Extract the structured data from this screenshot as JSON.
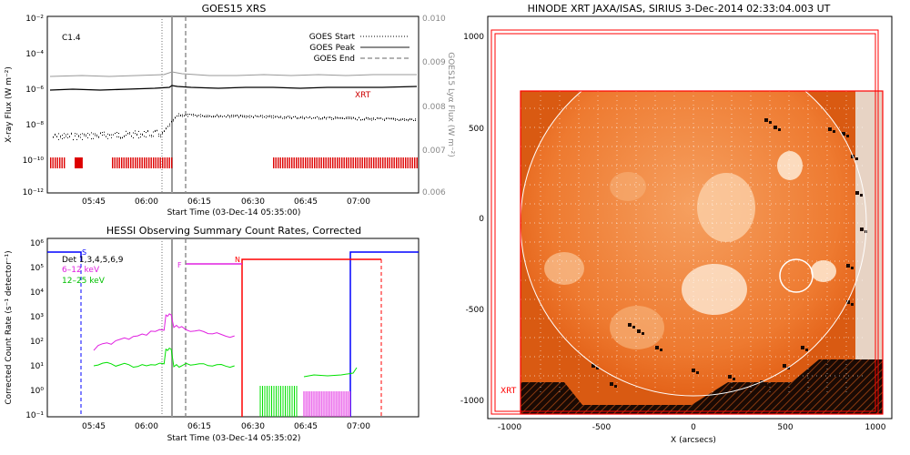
{
  "goes": {
    "title": "GOES15 XRS",
    "ylabel_left": "X-ray Flux (W m⁻²)",
    "ylabel_right": "GOES15 Lyα Flux (W m⁻²)",
    "xlabel": "Start Time (03-Dec-14 05:35:00)",
    "class_label": "C1.4",
    "left_ticks": [
      "10⁻²",
      "10⁻⁴",
      "10⁻⁶",
      "10⁻⁸",
      "10⁻¹⁰",
      "10⁻¹²"
    ],
    "right_ticks": [
      "0.010",
      "0.009",
      "0.008",
      "0.007",
      "0.006"
    ],
    "x_ticks": [
      "05:45",
      "06:00",
      "06:15",
      "06:30",
      "06:45",
      "07:00"
    ],
    "legend": [
      {
        "label": "GOES Start",
        "style": "dotted"
      },
      {
        "label": "GOES Peak",
        "style": "solid"
      },
      {
        "label": "GOES End",
        "style": "dashed"
      }
    ],
    "xrt_label": "XRT",
    "colors": {
      "long": "#000000",
      "lya": "#999999",
      "xrt": "#dd0000"
    }
  },
  "hessi": {
    "title": "HESSI Observing Summary Count Rates, Corrected",
    "ylabel": "Corrected Count Rate (s⁻¹ detector⁻¹)",
    "xlabel": "Start Time (03-Dec-14 05:35:02)",
    "y_ticks": [
      "10⁶",
      "10⁵",
      "10⁴",
      "10³",
      "10²",
      "10¹",
      "10⁰",
      "10⁻¹"
    ],
    "x_ticks": [
      "05:45",
      "06:00",
      "06:15",
      "06:30",
      "06:45",
      "07:00"
    ],
    "legend": [
      {
        "label": "Det 1,3,4,5,6,9",
        "color": "#000000"
      },
      {
        "label": "6–12 keV",
        "color": "#e020e0"
      },
      {
        "label": "12–25 keV",
        "color": "#00e000"
      }
    ],
    "markers": {
      "s": "S",
      "f": "F",
      "n": "N"
    },
    "colors": {
      "low": "#e020e0",
      "high": "#00e000",
      "night": "#ff0000",
      "saa": "#0000ff"
    }
  },
  "xrt": {
    "title": "HINODE XRT JAXA/ISAS, SIRIUS   3-Dec-2014 02:33:04.003 UT",
    "xlabel": "X (arcsecs)",
    "x_ticks": [
      "-1000",
      "-500",
      "0",
      "500",
      "1000"
    ],
    "y_ticks": [
      "1000",
      "500",
      "0",
      "-500",
      "-1000"
    ],
    "fov_label": "XRT",
    "colors": {
      "disk": "#e8651a",
      "fov": "#ff0000"
    }
  },
  "chart_data": [
    {
      "type": "line",
      "title": "GOES15 XRS",
      "xlabel": "Start Time (03-Dec-14 05:35:00)",
      "ylabel": "X-ray Flux (W m⁻²)",
      "x_ticks": [
        "05:45",
        "06:00",
        "06:15",
        "06:30",
        "06:45",
        "07:00"
      ],
      "ylim": [
        1e-12,
        0.01
      ],
      "yscale": "log",
      "series": [
        {
          "name": "GOES Start",
          "x": [
            "06:05"
          ]
        },
        {
          "name": "GOES Peak",
          "x": [
            "06:07"
          ]
        },
        {
          "name": "GOES End",
          "x": [
            "06:10"
          ]
        }
      ],
      "annotations": [
        "C1.4",
        "XRT"
      ]
    },
    {
      "type": "line",
      "title": "HESSI Observing Summary Count Rates, Corrected",
      "xlabel": "Start Time (03-Dec-14 05:35:02)",
      "ylabel": "Corrected Count Rate (s⁻¹ detector⁻¹)",
      "x_ticks": [
        "05:45",
        "06:00",
        "06:15",
        "06:30",
        "06:45",
        "07:00"
      ],
      "ylim": [
        0.1,
        1000000.0
      ],
      "yscale": "log",
      "series": [
        {
          "name": "6–12 keV",
          "x": [
            "05:45",
            "05:50",
            "05:55",
            "06:00",
            "06:05",
            "06:07",
            "06:10",
            "06:15",
            "06:20",
            "06:25"
          ],
          "values": [
            40,
            70,
            110,
            160,
            250,
            1000,
            350,
            250,
            200,
            150
          ]
        },
        {
          "name": "12–25 keV",
          "x": [
            "05:45",
            "05:50",
            "05:55",
            "06:00",
            "06:05",
            "06:07",
            "06:10",
            "06:15",
            "06:20",
            "06:25"
          ],
          "values": [
            10,
            12,
            11,
            10,
            12,
            45,
            10,
            12,
            11,
            10
          ]
        }
      ],
      "annotations": [
        "Det 1,3,4,5,6,9",
        "S",
        "F",
        "N"
      ]
    },
    {
      "type": "scatter",
      "title": "HINODE XRT JAXA/ISAS, SIRIUS   3-Dec-2014 02:33:04.003 UT",
      "xlabel": "X (arcsecs)",
      "xlim": [
        -1100,
        1100
      ],
      "ylim": [
        -1100,
        1100
      ],
      "x_ticks": [
        -1000,
        -500,
        0,
        500,
        1000
      ],
      "y_ticks": [
        1000,
        500,
        0,
        -500,
        -1000
      ],
      "annotations": [
        "XRT"
      ]
    }
  ]
}
